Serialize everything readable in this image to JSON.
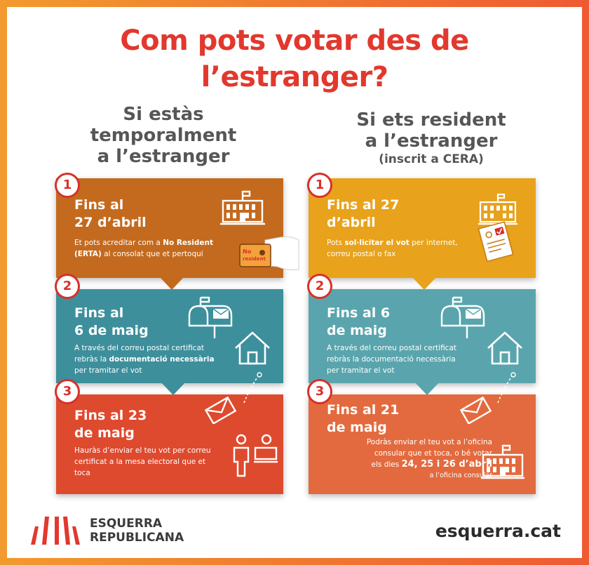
{
  "title_line1": "Com pots votar des de",
  "title_line2": "l’estranger?",
  "left": {
    "heading": [
      "Si estàs",
      "temporalment",
      "a l’estranger"
    ],
    "steps": [
      {
        "num": "1",
        "title": [
          "Fins al",
          "27 d’abril"
        ],
        "text": [
          "Et pots acreditar com a ",
          "No Resident",
          " (ERTA)",
          " al consolat que et pertoqui"
        ],
        "color": "#c46a1e"
      },
      {
        "num": "2",
        "title": [
          "Fins al",
          "6 de maig"
        ],
        "text": [
          "A través del correu postal certificat",
          "rebràs la ",
          "documentació necessària",
          "per tramitar el vot"
        ],
        "color": "#3d8f9c"
      },
      {
        "num": "3",
        "title": [
          "Fins al 23",
          "de maig"
        ],
        "text": [
          "Hauràs d’enviar el teu vot per correu",
          "certificat a la mesa electoral que et",
          "toca"
        ],
        "color": "#de4a2e"
      }
    ],
    "card_label": [
      "No",
      "resident"
    ]
  },
  "right": {
    "heading": [
      "Si ets resident",
      "a l’estranger"
    ],
    "subheading": "(inscrit a CERA)",
    "steps": [
      {
        "num": "1",
        "title": [
          "Fins al 27",
          "d’abril"
        ],
        "text": [
          "Pots ",
          "sol·licitar el vot",
          " per internet,",
          "correu postal o fax"
        ],
        "color": "#e8a21b"
      },
      {
        "num": "2",
        "title": [
          "Fins al 6",
          "de maig"
        ],
        "text": [
          "A través del correu postal certificat",
          "rebràs la documentació necessària",
          "per tramitar el vot"
        ],
        "color": "#5aa5ad"
      },
      {
        "num": "3",
        "title": [
          "Fins al 21",
          "de maig"
        ],
        "text": [
          "Podràs enviar el teu vot a l’oficina",
          "consular que et toca, o bé votar",
          "els dies ",
          "24, 25 i 26 d’abril",
          "a l’oficina consular"
        ],
        "color": "#e36a3e"
      }
    ]
  },
  "footer": {
    "brand_line1": "ESQUERRA",
    "brand_line2": "REPUBLICANA",
    "url": "esquerra.cat"
  },
  "colors": {
    "title": "#e2382d",
    "badge": "#d8302b",
    "heading": "#565656"
  }
}
